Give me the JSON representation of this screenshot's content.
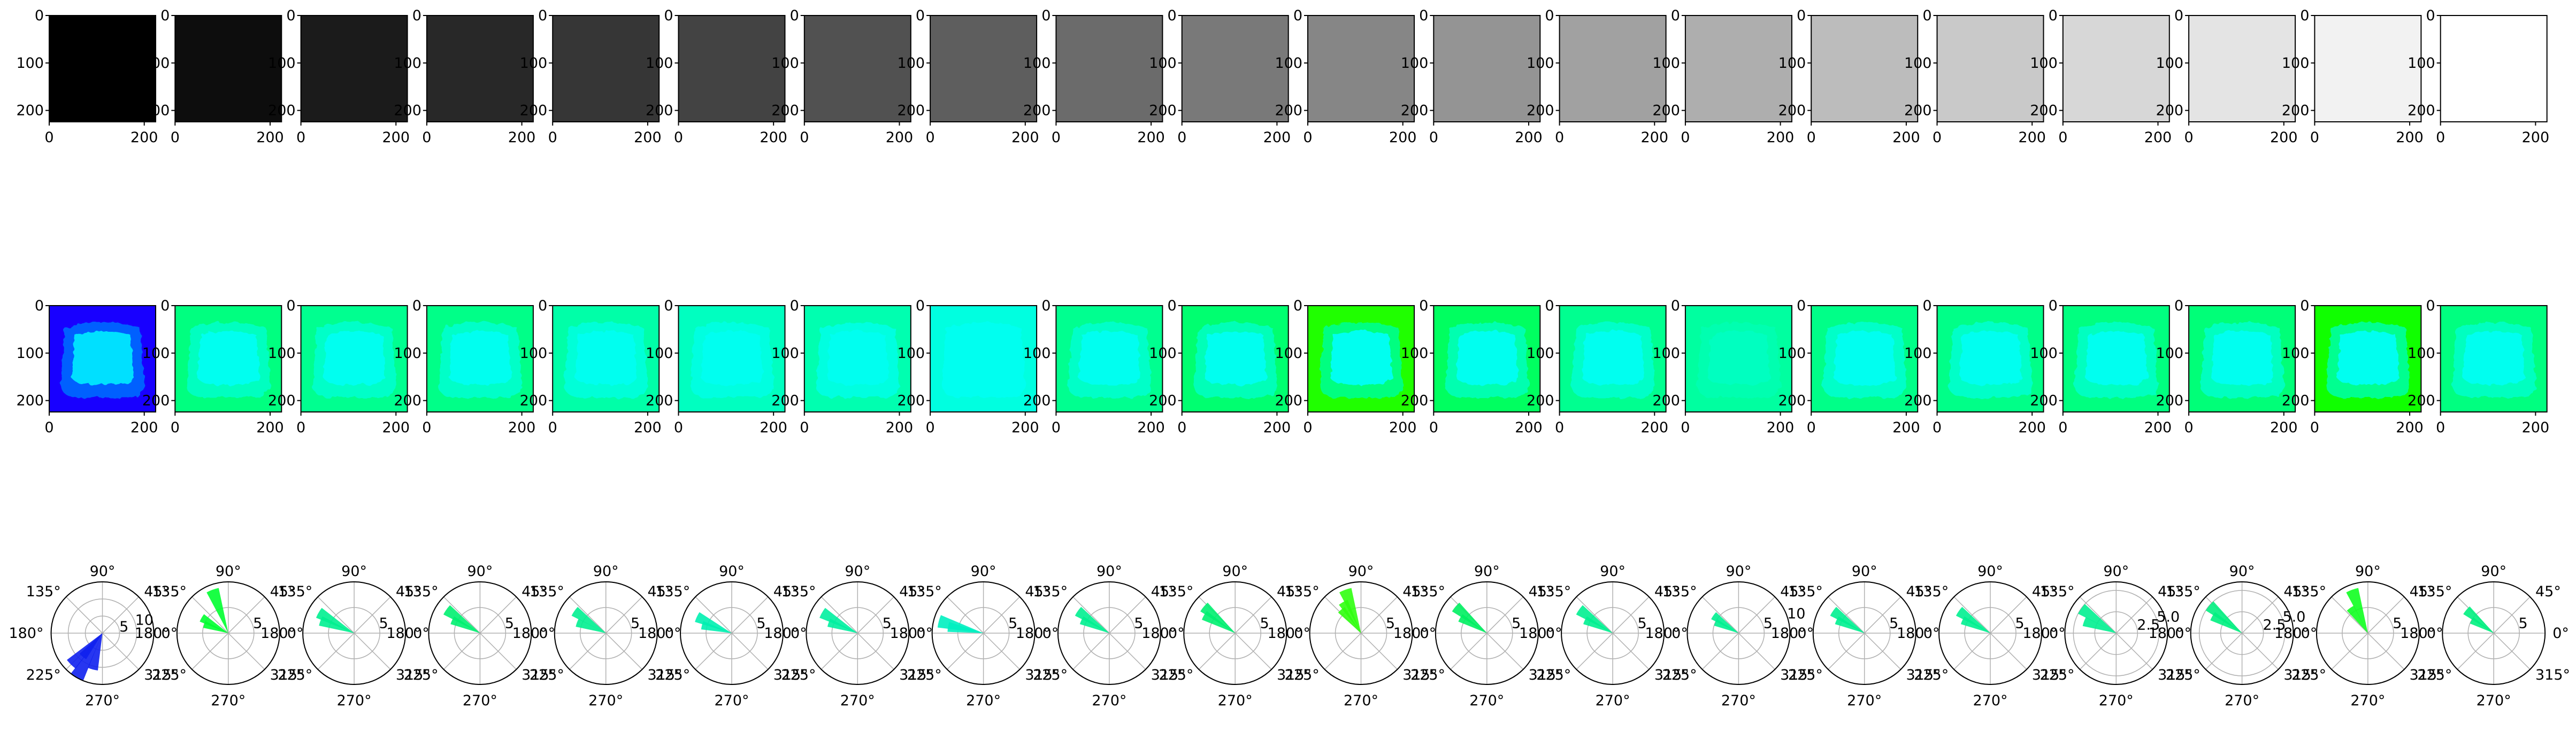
{
  "figure": {
    "columns": 20,
    "row1": {
      "type": "heatmap",
      "description_values": "uniform grayscale panels, gray level 0..1",
      "gray_levels": [
        0.0,
        0.0526,
        0.1053,
        0.1579,
        0.2105,
        0.2632,
        0.3158,
        0.3684,
        0.4211,
        0.4737,
        0.5263,
        0.5789,
        0.6316,
        0.6842,
        0.7368,
        0.7895,
        0.8421,
        0.8947,
        0.9474,
        1.0
      ],
      "x_ticks": [
        "0",
        "200"
      ],
      "y_ticks": [
        "0",
        "100",
        "200"
      ]
    },
    "row2": {
      "type": "heatmap",
      "panels": [
        {
          "bg": "#1800ff",
          "mid": "#0060ff",
          "inner": "#00e0ff"
        },
        {
          "bg": "#00ff80",
          "mid": "#00ffc0",
          "inner": "#00fff0"
        },
        {
          "bg": "#00ff90",
          "mid": "#00ffc8",
          "inner": "#00fff0"
        },
        {
          "bg": "#00ff88",
          "mid": "#00ffc8",
          "inner": "#00fff0"
        },
        {
          "bg": "#00ffa8",
          "mid": "#00ffd8",
          "inner": "#00fff0"
        },
        {
          "bg": "#00ffc0",
          "mid": "#00ffe0",
          "inner": "#00fff0"
        },
        {
          "bg": "#00ffb0",
          "mid": "#00ffe0",
          "inner": "#00fff0"
        },
        {
          "bg": "#00ffe0",
          "mid": "#00fff0",
          "inner": "#00fff0"
        },
        {
          "bg": "#00ff90",
          "mid": "#00ffc8",
          "inner": "#00fff0"
        },
        {
          "bg": "#00ff70",
          "mid": "#00ffb8",
          "inner": "#00fff0"
        },
        {
          "bg": "#20ff00",
          "mid": "#00ff80",
          "inner": "#00fff0"
        },
        {
          "bg": "#00ff60",
          "mid": "#00ffb0",
          "inner": "#00fff0"
        },
        {
          "bg": "#00ff90",
          "mid": "#00ffc8",
          "inner": "#00fff0"
        },
        {
          "bg": "#00ffa0",
          "mid": "#00ffb0",
          "inner": "#00ffc0"
        },
        {
          "bg": "#00ff88",
          "mid": "#00ffc8",
          "inner": "#00fff0"
        },
        {
          "bg": "#00ff88",
          "mid": "#00ffc8",
          "inner": "#00fff0"
        },
        {
          "bg": "#00ff80",
          "mid": "#00ffc0",
          "inner": "#00fff0"
        },
        {
          "bg": "#00ff78",
          "mid": "#00ffc0",
          "inner": "#00fff0"
        },
        {
          "bg": "#10ff00",
          "mid": "#00ff90",
          "inner": "#00fff0"
        },
        {
          "bg": "#00ff80",
          "mid": "#00ffc0",
          "inner": "#00fff0"
        }
      ],
      "x_ticks": [
        "0",
        "200"
      ],
      "y_ticks": [
        "0",
        "100",
        "200"
      ]
    },
    "row3": {
      "type": "polar_bar",
      "angle_labels": [
        "0°",
        "45°",
        "90°",
        "135°",
        "180°",
        "225°",
        "270°",
        "315°"
      ],
      "panels": [
        {
          "color": "#1020ee",
          "rmax": 15,
          "r_labels": [
            "5",
            "10"
          ],
          "bars": [
            [
              240,
              15
            ],
            [
              225,
              13
            ],
            [
              255,
              11
            ],
            [
              230,
              9
            ]
          ]
        },
        {
          "color": "#00ff30",
          "rmax": 10,
          "r_labels": [
            "5"
          ],
          "bars": [
            [
              110,
              9
            ],
            [
              150,
              6
            ],
            [
              160,
              5
            ]
          ]
        },
        {
          "color": "#00f090",
          "rmax": 10,
          "r_labels": [
            "5"
          ],
          "bars": [
            [
              150,
              8
            ],
            [
              160,
              7
            ]
          ]
        },
        {
          "color": "#00f070",
          "rmax": 10,
          "r_labels": [
            "5"
          ],
          "bars": [
            [
              145,
              8
            ],
            [
              155,
              6
            ]
          ]
        },
        {
          "color": "#00f090",
          "rmax": 10,
          "r_labels": [
            "5"
          ],
          "bars": [
            [
              145,
              7.5
            ],
            [
              160,
              6
            ]
          ]
        },
        {
          "color": "#00f0b0",
          "rmax": 10,
          "r_labels": [
            "5"
          ],
          "bars": [
            [
              155,
              7.5
            ],
            [
              165,
              6
            ]
          ]
        },
        {
          "color": "#00f0a0",
          "rmax": 10,
          "r_labels": [
            "5"
          ],
          "bars": [
            [
              150,
              8
            ],
            [
              160,
              6
            ]
          ]
        },
        {
          "color": "#00f0c0",
          "rmax": 10,
          "r_labels": [
            "5"
          ],
          "bars": [
            [
              165,
              9
            ],
            [
              170,
              7
            ]
          ]
        },
        {
          "color": "#00f090",
          "rmax": 10,
          "r_labels": [
            "5"
          ],
          "bars": [
            [
              145,
              7.5
            ],
            [
              155,
              6
            ]
          ]
        },
        {
          "color": "#00f070",
          "rmax": 10,
          "r_labels": [
            "5"
          ],
          "bars": [
            [
              140,
              8
            ],
            [
              150,
              7
            ]
          ]
        },
        {
          "color": "#30ff10",
          "rmax": 10,
          "r_labels": [
            "5"
          ],
          "bars": [
            [
              110,
              9
            ],
            [
              130,
              6
            ],
            [
              120,
              7
            ]
          ]
        },
        {
          "color": "#00f060",
          "rmax": 10,
          "r_labels": [
            "5"
          ],
          "bars": [
            [
              140,
              8
            ],
            [
              150,
              6
            ]
          ]
        },
        {
          "color": "#00f090",
          "rmax": 10,
          "r_labels": [
            "5"
          ],
          "bars": [
            [
              145,
              8
            ],
            [
              155,
              6
            ]
          ]
        },
        {
          "color": "#00f090",
          "rmax": 10,
          "r_labels": [
            "5",
            "10"
          ],
          "bars": [
            [
              145,
              6
            ],
            [
              155,
              5
            ]
          ]
        },
        {
          "color": "#00f090",
          "rmax": 10,
          "r_labels": [
            "5"
          ],
          "bars": [
            [
              145,
              7.5
            ],
            [
              155,
              6
            ]
          ]
        },
        {
          "color": "#00f090",
          "rmax": 10,
          "r_labels": [
            "5"
          ],
          "bars": [
            [
              145,
              7.5
            ],
            [
              155,
              6
            ]
          ]
        },
        {
          "color": "#00f090",
          "rmax": 6,
          "r_labels": [
            "2.5",
            "5.0"
          ],
          "bars": [
            [
              145,
              5
            ],
            [
              160,
              4
            ]
          ]
        },
        {
          "color": "#00f080",
          "rmax": 6,
          "r_labels": [
            "2.5",
            "5.0"
          ],
          "bars": [
            [
              140,
              5
            ],
            [
              150,
              4
            ]
          ]
        },
        {
          "color": "#10ff20",
          "rmax": 10,
          "r_labels": [
            "5"
          ],
          "bars": [
            [
              110,
              9
            ],
            [
              125,
              6
            ]
          ]
        },
        {
          "color": "#00f080",
          "rmax": 10,
          "r_labels": [
            "5"
          ],
          "bars": [
            [
              140,
              7
            ],
            [
              150,
              5
            ]
          ]
        }
      ]
    }
  }
}
